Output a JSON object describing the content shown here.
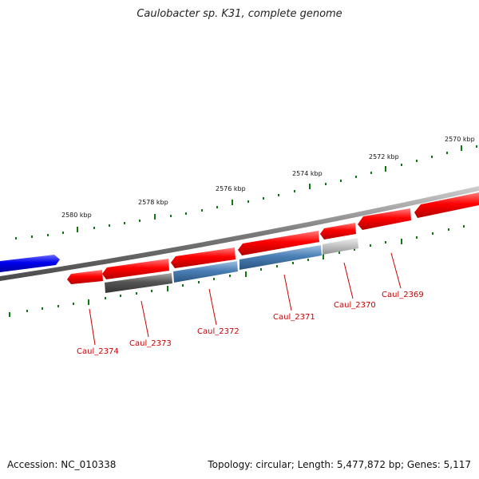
{
  "title": "Caulobacter sp. K31, complete genome",
  "footer": {
    "accession": "Accession: NC_010338",
    "summary": "Topology: circular; Length: 5,477,872 bp; Genes: 5,117"
  },
  "colors": {
    "forward_gene": "#e00000",
    "reverse_blue": "#4477aa",
    "reverse_gray": "#555555",
    "reverse_light": "#bbbbbb",
    "other_blue": "#0000ee",
    "backbone": "#777777",
    "tick": "#117711",
    "label": "#cc0000"
  },
  "scale_labels": [
    {
      "text": "2570 kbp"
    },
    {
      "text": "2572 kbp"
    },
    {
      "text": "2574 kbp"
    },
    {
      "text": "2576 kbp"
    },
    {
      "text": "2578 kbp"
    },
    {
      "text": "2580 kbp"
    }
  ],
  "gene_labels": [
    {
      "text": "Caul_2369"
    },
    {
      "text": "Caul_2370"
    },
    {
      "text": "Caul_2371"
    },
    {
      "text": "Caul_2372"
    },
    {
      "text": "Caul_2373"
    },
    {
      "text": "Caul_2374"
    }
  ]
}
